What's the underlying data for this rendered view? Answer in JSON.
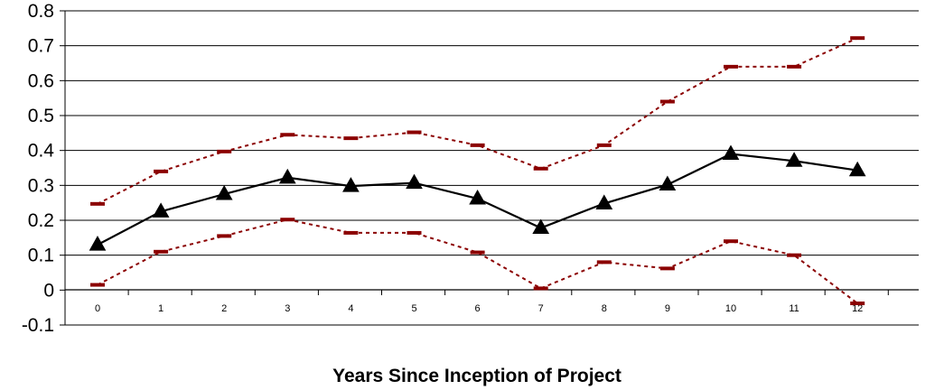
{
  "chart_data": {
    "type": "line",
    "title": "",
    "xlabel": "Years Since Inception of Project",
    "ylabel": "",
    "x": [
      0,
      1,
      2,
      3,
      4,
      5,
      6,
      7,
      8,
      9,
      10,
      11,
      12
    ],
    "x_tick_labels": [
      "0",
      "1",
      "2",
      "3",
      "4",
      "5",
      "6",
      "7",
      "8",
      "9",
      "10",
      "11",
      "12"
    ],
    "y_tick_labels": [
      "-0.1",
      "0",
      "0.1",
      "0.2",
      "0.3",
      "0.4",
      "0.5",
      "0.6",
      "0.7",
      "0.8"
    ],
    "ylim": [
      -0.1,
      0.8
    ],
    "grid": "horizontal",
    "legend": "none",
    "series": [
      {
        "role": "estimate",
        "color": "#000000",
        "marker": "triangle",
        "line_style": "solid",
        "values": [
          0.13,
          0.225,
          0.275,
          0.322,
          0.298,
          0.307,
          0.262,
          0.178,
          0.248,
          0.302,
          0.39,
          0.37,
          0.343
        ]
      },
      {
        "role": "upper-bound",
        "color": "#8b0000",
        "marker": "dash",
        "line_style": "dashed",
        "values": [
          0.247,
          0.34,
          0.397,
          0.445,
          0.435,
          0.452,
          0.415,
          0.348,
          0.415,
          0.54,
          0.64,
          0.64,
          0.722
        ]
      },
      {
        "role": "lower-bound",
        "color": "#8b0000",
        "marker": "dash",
        "line_style": "dashed",
        "values": [
          0.015,
          0.11,
          0.155,
          0.202,
          0.164,
          0.164,
          0.108,
          0.005,
          0.08,
          0.062,
          0.14,
          0.1,
          -0.038
        ]
      }
    ]
  }
}
